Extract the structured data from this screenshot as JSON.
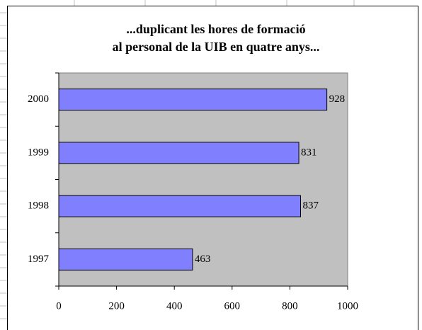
{
  "chart_data": {
    "type": "bar",
    "orientation": "horizontal",
    "title": [
      "...duplicant les hores de formació",
      "al personal de la UIB en quatre anys..."
    ],
    "categories": [
      "1997",
      "1998",
      "1999",
      "2000"
    ],
    "values": [
      463,
      837,
      831,
      928
    ],
    "color": "#8080ff",
    "plot_background": "#c0c0c0",
    "xlim": [
      0,
      1000
    ],
    "xticks": [
      0,
      200,
      400,
      600,
      800,
      1000
    ],
    "grid": false
  }
}
